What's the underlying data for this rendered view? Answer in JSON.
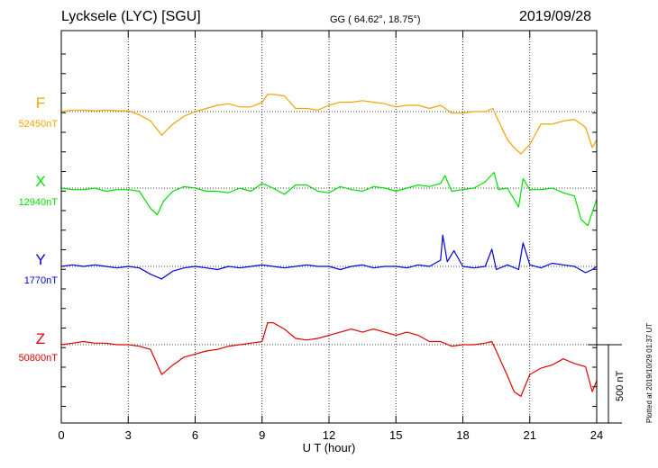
{
  "header": {
    "station": "Lycksele (LYC)  [SGU]",
    "coords": "GG ( 64.62°,  18.75°)",
    "date": "2019/09/28"
  },
  "side_note": "Plotted at 2019/10/29 01:37 UT",
  "chart_data": {
    "type": "line",
    "xlabel": "U T (hour)",
    "xlim": [
      0,
      24
    ],
    "xticks": [
      0,
      3,
      6,
      9,
      12,
      15,
      18,
      21,
      24
    ],
    "xtick_labels": [
      "0",
      "3",
      "6",
      "9",
      "12",
      "15",
      "18",
      "21",
      "24"
    ],
    "grid": "dotted vertical at 3-hour ticks, dotted baseline per component",
    "scale_bar": {
      "label": "500 nT",
      "value_nT": 500
    },
    "series": [
      {
        "name": "F",
        "baseline_label": "52450nT",
        "color": "#f4a300",
        "x": [
          0,
          0.5,
          1,
          1.5,
          2,
          2.5,
          3,
          3.5,
          4,
          4.5,
          5,
          5.5,
          6,
          6.5,
          7,
          7.5,
          8,
          8.5,
          9,
          9.25,
          9.5,
          10,
          10.5,
          11,
          11.5,
          12,
          12.5,
          13,
          13.5,
          14,
          14.5,
          15,
          15.5,
          16,
          16.5,
          17,
          17.5,
          18,
          18.5,
          19,
          19.35,
          19.5,
          20,
          20.3,
          20.6,
          21,
          21.5,
          22,
          22.5,
          23,
          23.5,
          23.8,
          24
        ],
        "y": [
          0,
          10,
          10,
          5,
          10,
          5,
          5,
          -20,
          -60,
          -150,
          -80,
          -30,
          0,
          20,
          40,
          50,
          30,
          30,
          60,
          110,
          110,
          100,
          20,
          20,
          10,
          40,
          60,
          60,
          70,
          60,
          50,
          30,
          40,
          40,
          20,
          40,
          -10,
          -10,
          0,
          0,
          20,
          -30,
          -180,
          -230,
          -270,
          -210,
          -80,
          -80,
          -60,
          -50,
          -100,
          -230,
          -180
        ]
      },
      {
        "name": "X",
        "baseline_label": "12940nT",
        "color": "#00e000",
        "x": [
          0,
          0.5,
          1,
          1.5,
          2,
          2.5,
          3,
          3.5,
          4,
          4.3,
          4.6,
          5,
          5.5,
          6,
          6.5,
          7,
          7.5,
          8,
          8.5,
          9,
          9.5,
          10,
          10.5,
          11,
          11.5,
          12,
          12.5,
          13,
          13.5,
          14,
          14.5,
          15,
          15.5,
          16,
          16.5,
          17,
          17.2,
          17.5,
          18,
          18.5,
          19,
          19.4,
          19.6,
          20,
          20.5,
          20.7,
          21,
          21.5,
          22,
          22.5,
          23,
          23.3,
          23.6,
          24
        ],
        "y": [
          0,
          -10,
          -10,
          0,
          -20,
          -10,
          -10,
          -20,
          -130,
          -170,
          -80,
          -20,
          10,
          0,
          -20,
          -20,
          -30,
          0,
          -20,
          30,
          0,
          -40,
          20,
          20,
          -20,
          -30,
          10,
          -10,
          -20,
          10,
          0,
          -20,
          0,
          20,
          10,
          30,
          80,
          -20,
          -10,
          0,
          40,
          100,
          -10,
          0,
          -120,
          60,
          -10,
          -10,
          0,
          -30,
          -50,
          -200,
          -240,
          -70
        ]
      },
      {
        "name": "Y",
        "baseline_label": "1770nT",
        "color": "#0000dd",
        "x": [
          0,
          0.5,
          1,
          1.5,
          2,
          2.5,
          3,
          3.5,
          4,
          4.5,
          5,
          5.5,
          6,
          6.5,
          7,
          7.5,
          8,
          8.5,
          9,
          9.5,
          10,
          10.5,
          11,
          11.5,
          12,
          12.5,
          13,
          13.5,
          14,
          14.5,
          15,
          15.5,
          16,
          16.5,
          17,
          17.1,
          17.3,
          17.6,
          18,
          18.5,
          19,
          19.3,
          19.5,
          20,
          20.5,
          20.7,
          21,
          21.5,
          22,
          22.5,
          23,
          23.5,
          23.8,
          24
        ],
        "y": [
          0,
          10,
          0,
          10,
          0,
          -10,
          0,
          -10,
          -50,
          -80,
          -30,
          -10,
          0,
          -10,
          -20,
          0,
          -10,
          0,
          10,
          0,
          -10,
          0,
          10,
          0,
          0,
          -20,
          0,
          10,
          -10,
          0,
          0,
          -10,
          10,
          0,
          40,
          200,
          30,
          100,
          0,
          -10,
          0,
          110,
          -20,
          10,
          -20,
          150,
          10,
          -10,
          20,
          10,
          0,
          -40,
          -20,
          0
        ]
      },
      {
        "name": "Z",
        "baseline_label": "50800nT",
        "color": "#e00000",
        "x": [
          0,
          0.5,
          1,
          1.5,
          2,
          2.5,
          3,
          3.5,
          4,
          4.5,
          5,
          5.5,
          6,
          6.5,
          7,
          7.5,
          8,
          8.5,
          9,
          9.25,
          9.5,
          10,
          10.5,
          11,
          11.5,
          12,
          12.5,
          13,
          13.5,
          14,
          14.5,
          15,
          15.5,
          16,
          16.5,
          17,
          17.5,
          18,
          18.5,
          19,
          19.3,
          19.5,
          20,
          20.3,
          20.6,
          21,
          21.5,
          22,
          22.5,
          23,
          23.5,
          23.8,
          24
        ],
        "y": [
          0,
          10,
          20,
          10,
          10,
          0,
          0,
          -10,
          -30,
          -190,
          -130,
          -80,
          -60,
          -40,
          -30,
          -10,
          0,
          10,
          20,
          140,
          140,
          100,
          40,
          30,
          40,
          60,
          80,
          100,
          80,
          100,
          80,
          60,
          80,
          60,
          20,
          20,
          -10,
          0,
          0,
          10,
          20,
          -40,
          -200,
          -300,
          -330,
          -190,
          -150,
          -130,
          -90,
          -120,
          -140,
          -300,
          -230
        ]
      }
    ]
  }
}
